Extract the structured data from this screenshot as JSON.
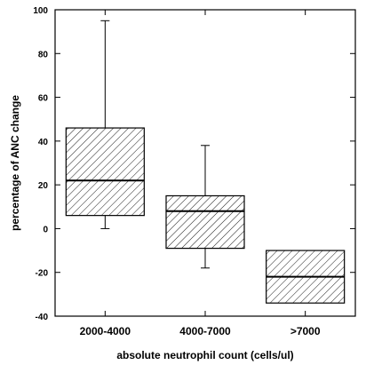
{
  "chart_data": {
    "type": "box",
    "xlabel": "absolute neutrophil count (cells/ul)",
    "ylabel": "percentage of ANC change",
    "ylim": [
      -40,
      100
    ],
    "yticks": [
      -40,
      -20,
      0,
      20,
      40,
      60,
      80,
      100
    ],
    "categories": [
      "2000-4000",
      "4000-7000",
      ">7000"
    ],
    "boxes": [
      {
        "category": "2000-4000",
        "whisker_low": 0,
        "q1": 6,
        "median": 22,
        "q3": 46,
        "whisker_high": 95
      },
      {
        "category": "4000-7000",
        "whisker_low": -18,
        "q1": -9,
        "median": 8,
        "q3": 15,
        "whisker_high": 38
      },
      {
        "category": ">7000",
        "whisker_low": -34,
        "q1": -34,
        "median": -22,
        "q3": -10,
        "whisker_high": -10
      }
    ],
    "fill": "diagonal hatch",
    "grid": false
  }
}
